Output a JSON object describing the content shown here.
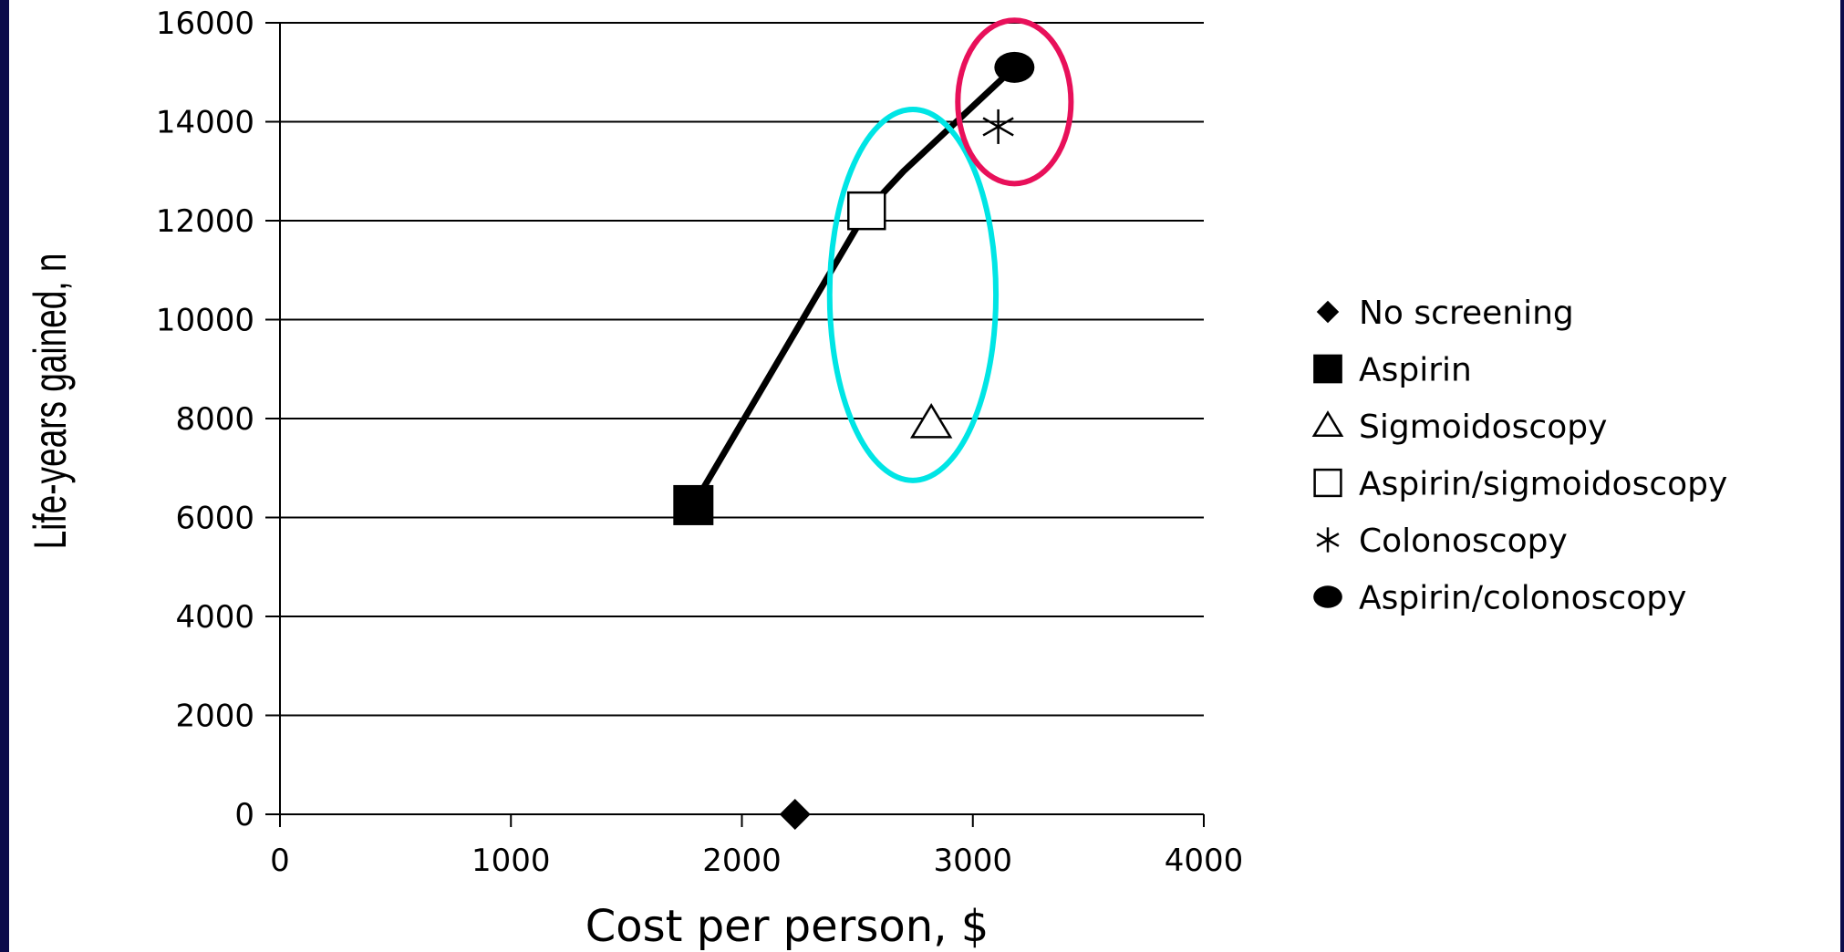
{
  "chart_data": {
    "type": "scatter",
    "title": "",
    "xlabel": "Cost per person, $",
    "ylabel": "Life-years gained, n",
    "xlim": [
      0,
      4000
    ],
    "ylim": [
      0,
      16000
    ],
    "xticks": [
      0,
      1000,
      2000,
      3000,
      4000
    ],
    "yticks": [
      0,
      2000,
      4000,
      6000,
      8000,
      10000,
      12000,
      14000,
      16000
    ],
    "grid": "horizontal",
    "legend_position": "right",
    "series": [
      {
        "name": "No screening",
        "marker": "diamond-filled",
        "x": 2230,
        "y": 0
      },
      {
        "name": "Aspirin",
        "marker": "square-filled",
        "x": 1790,
        "y": 6250
      },
      {
        "name": "Sigmoidoscopy",
        "marker": "triangle-open",
        "x": 2820,
        "y": 7900
      },
      {
        "name": "Aspirin/sigmoidoscopy",
        "marker": "square-open",
        "x": 2540,
        "y": 12200
      },
      {
        "name": "Colonoscopy",
        "marker": "asterisk",
        "x": 3110,
        "y": 13900
      },
      {
        "name": "Aspirin/colonoscopy",
        "marker": "circle-filled",
        "x": 3180,
        "y": 15100
      }
    ],
    "efficiency_frontier": {
      "x": [
        1790,
        2540,
        2700,
        3180
      ],
      "y": [
        6250,
        12200,
        13000,
        15100
      ]
    },
    "annotations": [
      {
        "shape": "ellipse",
        "color": "#00e5e5",
        "cx": 2740,
        "cy": 10500,
        "rx": 360,
        "ry": 3750
      },
      {
        "shape": "ellipse",
        "color": "#e8105a",
        "cx": 3180,
        "cy": 14400,
        "rx": 245,
        "ry": 1650
      }
    ]
  }
}
